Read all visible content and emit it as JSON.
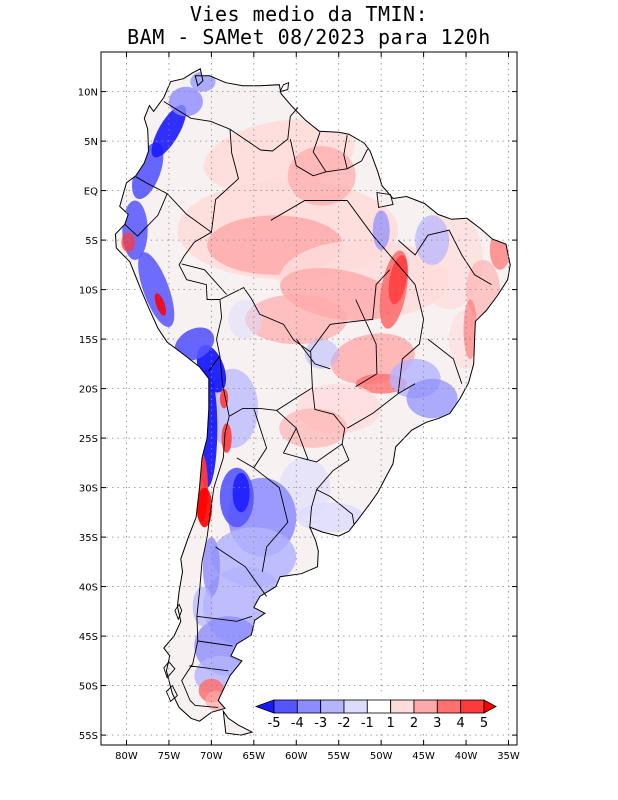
{
  "title": {
    "line1": "Vies medio da TMIN:",
    "line2": "BAM - SAMet 08/2023  para 120h"
  },
  "map": {
    "lon_range": [
      -83,
      -34
    ],
    "lat_range": [
      -56,
      14
    ],
    "lat_ticks": [
      {
        "value": 10,
        "label": "10N"
      },
      {
        "value": 5,
        "label": "5N"
      },
      {
        "value": 0,
        "label": "EQ"
      },
      {
        "value": -5,
        "label": "5S"
      },
      {
        "value": -10,
        "label": "10S"
      },
      {
        "value": -15,
        "label": "15S"
      },
      {
        "value": -20,
        "label": "20S"
      },
      {
        "value": -25,
        "label": "25S"
      },
      {
        "value": -30,
        "label": "30S"
      },
      {
        "value": -35,
        "label": "35S"
      },
      {
        "value": -40,
        "label": "40S"
      },
      {
        "value": -45,
        "label": "45S"
      },
      {
        "value": -50,
        "label": "50S"
      },
      {
        "value": -55,
        "label": "55S"
      }
    ],
    "lon_ticks": [
      {
        "value": -80,
        "label": "80W"
      },
      {
        "value": -75,
        "label": "75W"
      },
      {
        "value": -70,
        "label": "70W"
      },
      {
        "value": -65,
        "label": "65W"
      },
      {
        "value": -60,
        "label": "60W"
      },
      {
        "value": -55,
        "label": "55W"
      },
      {
        "value": -50,
        "label": "50W"
      },
      {
        "value": -45,
        "label": "45W"
      },
      {
        "value": -40,
        "label": "40W"
      },
      {
        "value": -35,
        "label": "35W"
      }
    ]
  },
  "colorbar": {
    "labels": [
      "-5",
      "-4",
      "-3",
      "-2",
      "-1",
      "1",
      "2",
      "3",
      "4",
      "5"
    ],
    "colors": [
      "#1a1aff",
      "#5555ff",
      "#8c8cff",
      "#b4b4ff",
      "#dcdcff",
      "#ffffff",
      "#ffdcdc",
      "#ffaaaa",
      "#ff7070",
      "#ff3a3a",
      "#ff0000"
    ]
  }
}
